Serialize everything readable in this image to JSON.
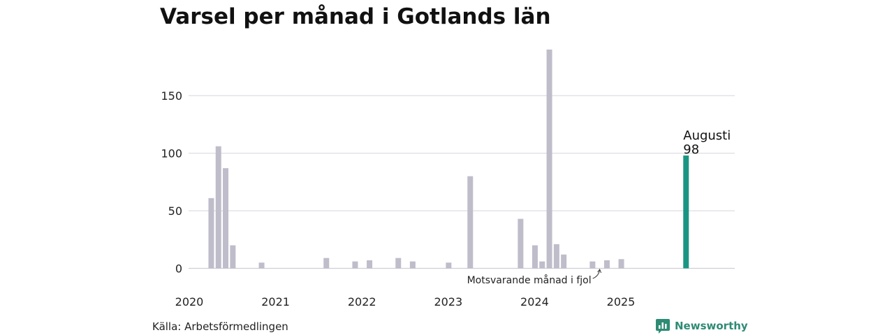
{
  "title": "Varsel per månad i Gotlands län",
  "source": "Källa: Arbetsförmedlingen",
  "brand": {
    "name": "Newsworthy",
    "icon": "newsworthy-logo-icon"
  },
  "colors": {
    "bar": "#bfbdca",
    "highlight": "#1a9583",
    "grid": "#dedde3",
    "brand": "#2e8b74"
  },
  "chart_data": {
    "type": "bar",
    "title": "Varsel per månad i Gotlands län",
    "xlabel": "",
    "ylabel": "",
    "ylim": [
      0,
      190
    ],
    "yticks": [
      0,
      50,
      100,
      150
    ],
    "x_tick_labels": [
      "2020",
      "2021",
      "2022",
      "2023",
      "2024",
      "2025"
    ],
    "grid": true,
    "legend": "none",
    "bars": [
      {
        "date": "2020-02",
        "value": 61
      },
      {
        "date": "2020-03",
        "value": 106
      },
      {
        "date": "2020-04",
        "value": 87
      },
      {
        "date": "2020-05",
        "value": 20
      },
      {
        "date": "2020-09",
        "value": 5
      },
      {
        "date": "2021-06",
        "value": 9
      },
      {
        "date": "2021-10",
        "value": 6
      },
      {
        "date": "2021-12",
        "value": 7
      },
      {
        "date": "2022-04",
        "value": 9
      },
      {
        "date": "2022-06",
        "value": 6
      },
      {
        "date": "2022-11",
        "value": 5
      },
      {
        "date": "2023-02",
        "value": 80
      },
      {
        "date": "2023-09",
        "value": 43
      },
      {
        "date": "2023-11",
        "value": 20
      },
      {
        "date": "2023-12",
        "value": 6
      },
      {
        "date": "2024-01",
        "value": 190
      },
      {
        "date": "2024-02",
        "value": 21
      },
      {
        "date": "2024-03",
        "value": 12
      },
      {
        "date": "2024-07",
        "value": 6
      },
      {
        "date": "2024-09",
        "value": 7
      },
      {
        "date": "2024-11",
        "value": 8
      },
      {
        "date": "2025-08",
        "value": 98,
        "highlight": true
      }
    ],
    "annotations": {
      "highlight_month": "Augusti",
      "highlight_value": "98",
      "last_year": "Motsvarande månad i fjol"
    }
  }
}
